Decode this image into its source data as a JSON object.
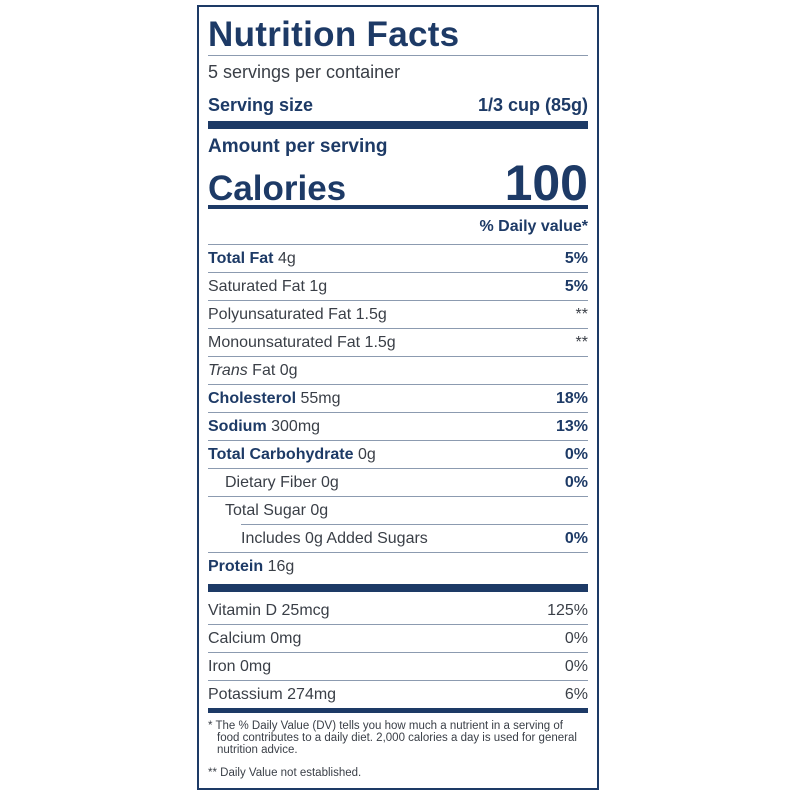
{
  "title": "Nutrition Facts",
  "servings_per_container": "5 servings per container",
  "serving_size": {
    "label": "Serving size",
    "value": "1/3 cup (85g)"
  },
  "amount_per_serving": "Amount per serving",
  "calories": {
    "label": "Calories",
    "value": "100"
  },
  "daily_value_header": "% Daily value*",
  "nutrients": [
    {
      "name": "Total Fat",
      "amount": "4g",
      "dv": "5%"
    },
    {
      "name": "Saturated Fat",
      "amount": "1g",
      "dv": "5%"
    },
    {
      "name": "Polyunsaturated Fat",
      "amount": "1.5g",
      "dv": "**"
    },
    {
      "name": "Monounsaturated Fat",
      "amount": "1.5g",
      "dv": "**"
    },
    {
      "name": "Trans",
      "name_suffix": "Fat",
      "amount": "0g",
      "dv": ""
    },
    {
      "name": "Cholesterol",
      "amount": "55mg",
      "dv": "18%"
    },
    {
      "name": "Sodium",
      "amount": "300mg",
      "dv": "13%"
    },
    {
      "name": "Total Carbohydrate",
      "amount": "0g",
      "dv": "0%"
    },
    {
      "name": "Dietary Fiber",
      "amount": "0g",
      "dv": "0%"
    },
    {
      "name": "Total Sugar",
      "amount": "0g",
      "dv": ""
    },
    {
      "name": "Includes 0g Added Sugars",
      "amount": "",
      "dv": "0%"
    },
    {
      "name": "Protein",
      "amount": "16g",
      "dv": ""
    }
  ],
  "vitamins": [
    {
      "name": "Vitamin D",
      "amount": "25mcg",
      "dv": "125%"
    },
    {
      "name": "Calcium",
      "amount": "0mg",
      "dv": "0%"
    },
    {
      "name": "Iron",
      "amount": "0mg",
      "dv": "0%"
    },
    {
      "name": "Potassium",
      "amount": "274mg",
      "dv": "6%"
    }
  ],
  "footnote_dv": "* The % Daily Value (DV) tells you how much a nutrient in a serving of food contributes to a daily diet. 2,000 calories a day is used for general nutrition advice.",
  "footnote_not_established": "** Daily Value not established.",
  "colors": {
    "primary": "#1d3a66",
    "text": "#3a3f47",
    "rule": "#8c9bb0"
  }
}
